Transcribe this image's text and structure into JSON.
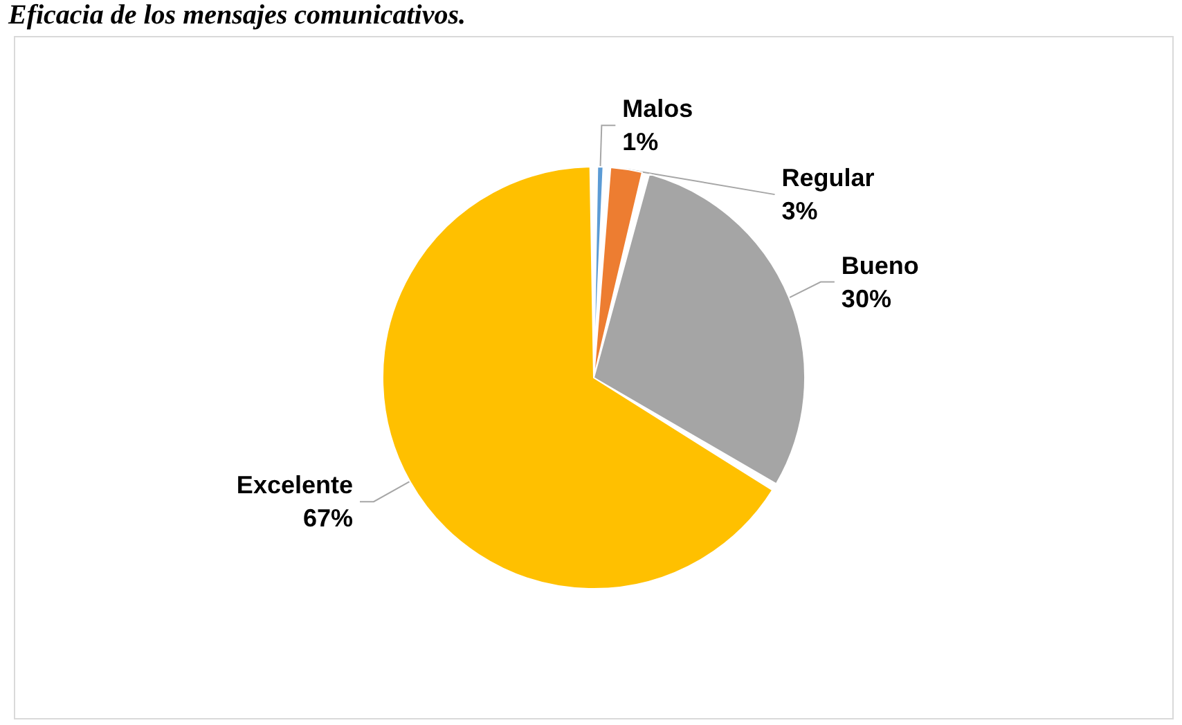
{
  "chart_data": {
    "type": "pie",
    "title": "Eficacia de los mensajes comunicativos.",
    "categories": [
      "Malos",
      "Regular",
      "Bueno",
      "Excelente"
    ],
    "values": [
      1,
      3,
      30,
      67
    ],
    "value_labels": [
      "1%",
      "3%",
      "30%",
      "67%"
    ],
    "colors": [
      "#5b9bd5",
      "#ed7d31",
      "#a5a5a5",
      "#ffc000"
    ],
    "legend": false
  }
}
